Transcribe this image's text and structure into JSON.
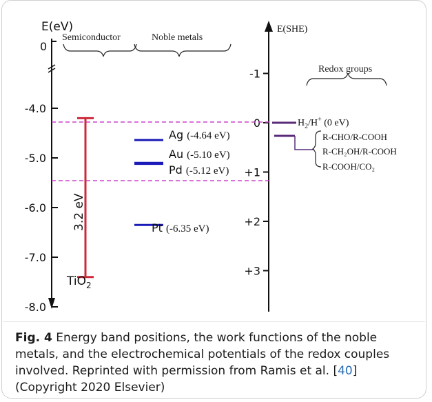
{
  "left_axis": {
    "label": "E(eV)",
    "top_tick": "0",
    "ticks": [
      "-4.0",
      "-5.0",
      "-6.0",
      "-7.0",
      "-8.0"
    ]
  },
  "right_axis": {
    "label": "E(SHE)",
    "ticks": [
      "-1",
      "0",
      "+1",
      "+2",
      "+3"
    ]
  },
  "headers": {
    "semiconductor": "Semiconductor",
    "noble_metals": "Noble metals",
    "redox_groups": "Redox groups"
  },
  "semiconductor": {
    "name_base": "TiO",
    "name_sub": "2",
    "bandgap": "3.2 eV",
    "cb_ev": -4.2,
    "vb_ev": -7.4,
    "color": "#cc2a3a"
  },
  "metals": [
    {
      "symbol": "Ag",
      "value": "(-4.64 eV)",
      "work_function_ev": -4.64
    },
    {
      "symbol": "Au",
      "value": "(-5.10 eV)",
      "work_function_ev": -5.1
    },
    {
      "symbol": "Pd",
      "value": "(-5.12 eV)",
      "work_function_ev": -5.12
    },
    {
      "symbol": "Pt",
      "value": "(-6.35 eV)",
      "work_function_ev": -6.35
    }
  ],
  "metal_color": "#1a1ab8",
  "redox": {
    "h2_label_main": "H",
    "h2_sub": "2",
    "h2_mid": "/H",
    "h2_sup": "+",
    "h2_value": " (0 eV)",
    "couples": [
      "R-CHO/R-COOH",
      "R-CH₂OH/R-COOH",
      "R-COOH/CO₂"
    ],
    "line_color": "#5a2a7a"
  },
  "dashed_color": "#cc44cc",
  "caption": {
    "fig_label": "Fig. 4",
    "text_part1": "  Energy band positions, the work functions of the noble metals, and the electrochemical potentials of the redox couples involved. Reprinted with permission from Ramis et al. [",
    "ref": "40",
    "text_part2": "]  (Copyright 2020 Elsevier)"
  }
}
